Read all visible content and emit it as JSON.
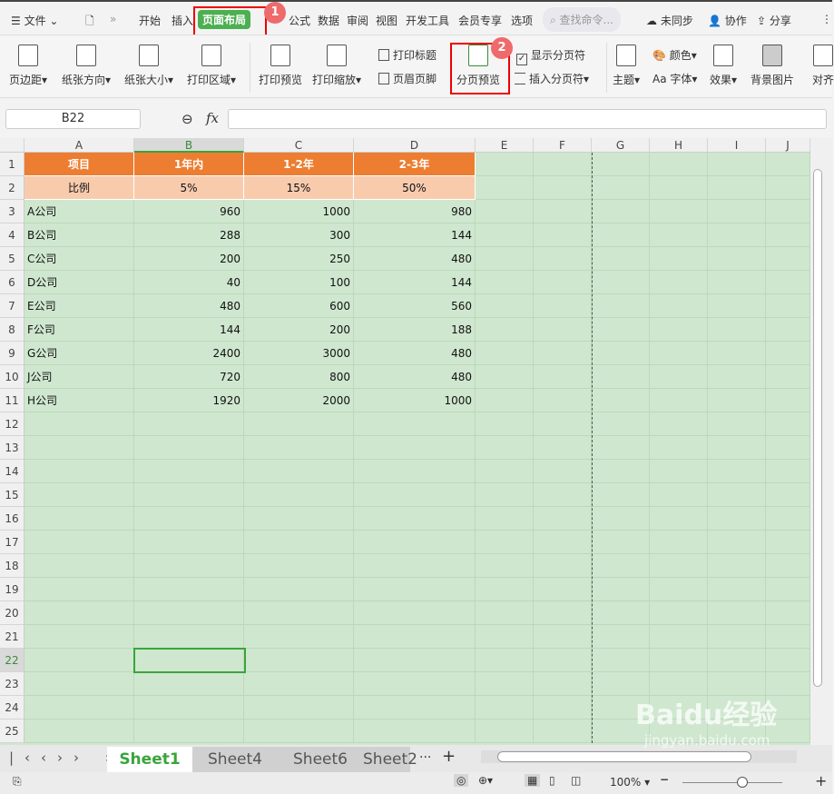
{
  "menu": {
    "file": "文件",
    "tabs": [
      "开始",
      "插入",
      "页面布局",
      "公式",
      "数据",
      "审阅",
      "视图",
      "开发工具",
      "会员专享",
      "选项"
    ],
    "search_placeholder": "查找命令...",
    "sync": "未同步",
    "collab": "协作",
    "share": "分享"
  },
  "annotations": {
    "step1": "1",
    "step2": "2"
  },
  "ribbon": {
    "margins": "页边距",
    "orientation": "纸张方向",
    "size": "纸张大小",
    "print_area": "打印区域",
    "print_preview": "打印预览",
    "print_scale": "打印缩放",
    "print_titles": "打印标题",
    "header_footer": "页眉页脚",
    "page_break_preview": "分页预览",
    "show_breaks": "显示分页符",
    "show_breaks_checked": true,
    "insert_break": "插入分页符",
    "theme": "主题",
    "colors": "颜色",
    "fonts": "Aa 字体",
    "effects": "效果",
    "background": "背景图片",
    "align": "对齐"
  },
  "formula": {
    "name_box": "B22",
    "fx": "fx",
    "value": ""
  },
  "sheet": {
    "columns": [
      "A",
      "B",
      "C",
      "D",
      "E",
      "F",
      "G",
      "H",
      "I",
      "J"
    ],
    "selected_column": "B",
    "selected_row": 22,
    "row_count": 25,
    "header_row": [
      "项目",
      "1年内",
      "1-2年",
      "2-3年"
    ],
    "ratio_row": [
      "比例",
      "5%",
      "15%",
      "50%"
    ],
    "rows": [
      [
        "A公司",
        "960",
        "1000",
        "980"
      ],
      [
        "B公司",
        "288",
        "300",
        "144"
      ],
      [
        "C公司",
        "200",
        "250",
        "480"
      ],
      [
        "D公司",
        "40",
        "100",
        "144"
      ],
      [
        "E公司",
        "480",
        "600",
        "560"
      ],
      [
        "F公司",
        "144",
        "200",
        "188"
      ],
      [
        "G公司",
        "2400",
        "3000",
        "480"
      ],
      [
        "J公司",
        "720",
        "800",
        "480"
      ],
      [
        "H公司",
        "1920",
        "2000",
        "1000"
      ]
    ]
  },
  "sheet_tabs": [
    "Sheet1",
    "Sheet4",
    "Sheet6",
    "Sheet2"
  ],
  "active_sheet": "Sheet1",
  "more": "···",
  "add": "+",
  "status": {
    "zoom": "100%",
    "zoom_level": 0.6
  },
  "watermark": "Baidu经验 jingyan.baidu.com",
  "colors": {
    "accent": "#4caf50",
    "header_orange": "#ed7d31",
    "header_peach": "#f8cbad",
    "grid_green": "#cfe7cf",
    "highlight": "#e00000"
  }
}
